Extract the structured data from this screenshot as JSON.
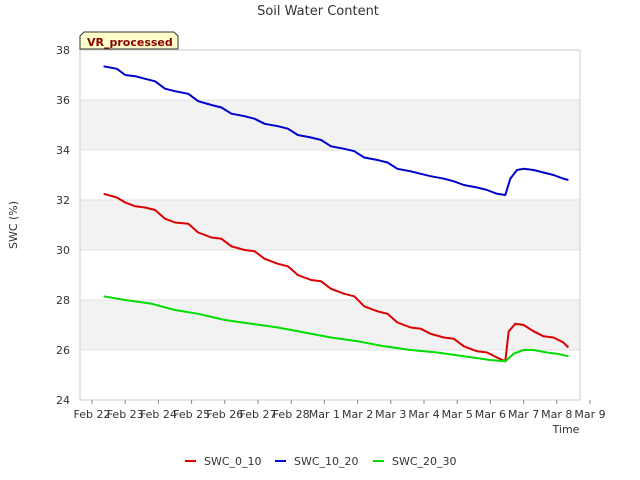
{
  "chart_data": {
    "type": "line",
    "title": "Soil Water Content",
    "xlabel": "Time",
    "ylabel": "SWC (%)",
    "badge": "VR_processed",
    "ylim": [
      24,
      38
    ],
    "yticks": [
      24,
      26,
      28,
      30,
      32,
      34,
      36,
      38
    ],
    "xlim": [
      0,
      15
    ],
    "x_ticks": [
      {
        "x": 0,
        "label": "Feb 22"
      },
      {
        "x": 1,
        "label": "Feb 23"
      },
      {
        "x": 2,
        "label": "Feb 24"
      },
      {
        "x": 3,
        "label": "Feb 25"
      },
      {
        "x": 4,
        "label": "Feb 26"
      },
      {
        "x": 5,
        "label": "Feb 27"
      },
      {
        "x": 6,
        "label": "Feb 28"
      },
      {
        "x": 7,
        "label": "Mar 1"
      },
      {
        "x": 8,
        "label": "Mar 2"
      },
      {
        "x": 9,
        "label": "Mar 3"
      },
      {
        "x": 10,
        "label": "Mar 4"
      },
      {
        "x": 11,
        "label": "Mar 5"
      },
      {
        "x": 12,
        "label": "Mar 6"
      },
      {
        "x": 13,
        "label": "Mar 7"
      },
      {
        "x": 14,
        "label": "Mar 8"
      },
      {
        "x": 15,
        "label": "Mar 9"
      }
    ],
    "grid": true,
    "bands": true,
    "legend_position": "bottom",
    "series": [
      {
        "name": "SWC_0_10",
        "color": "#dd0000",
        "x": [
          0.35,
          0.75,
          1.0,
          1.3,
          1.6,
          1.9,
          2.2,
          2.5,
          2.9,
          3.2,
          3.6,
          3.9,
          4.2,
          4.6,
          4.9,
          5.2,
          5.6,
          5.9,
          6.2,
          6.6,
          6.9,
          7.2,
          7.6,
          7.9,
          8.2,
          8.6,
          8.9,
          9.2,
          9.6,
          9.9,
          10.2,
          10.6,
          10.9,
          11.2,
          11.6,
          11.9,
          12.2,
          12.45,
          12.55,
          12.75,
          13.0,
          13.3,
          13.6,
          13.9,
          14.2,
          14.35
        ],
        "values": [
          32.25,
          32.1,
          31.9,
          31.75,
          31.7,
          31.6,
          31.25,
          31.1,
          31.05,
          30.7,
          30.5,
          30.45,
          30.15,
          30.0,
          29.95,
          29.65,
          29.45,
          29.35,
          29.0,
          28.8,
          28.75,
          28.45,
          28.25,
          28.15,
          27.75,
          27.55,
          27.45,
          27.1,
          26.9,
          26.85,
          26.65,
          26.5,
          26.45,
          26.15,
          25.95,
          25.9,
          25.7,
          25.55,
          26.75,
          27.05,
          27.0,
          26.75,
          26.55,
          26.5,
          26.3,
          26.1
        ]
      },
      {
        "name": "SWC_10_20",
        "color": "#0000cc",
        "x": [
          0.35,
          0.75,
          1.0,
          1.3,
          1.6,
          1.9,
          2.2,
          2.5,
          2.9,
          3.2,
          3.6,
          3.9,
          4.2,
          4.6,
          4.9,
          5.2,
          5.6,
          5.9,
          6.2,
          6.6,
          6.9,
          7.2,
          7.6,
          7.9,
          8.2,
          8.6,
          8.9,
          9.2,
          9.6,
          9.9,
          10.2,
          10.6,
          10.9,
          11.2,
          11.6,
          11.9,
          12.2,
          12.45,
          12.6,
          12.8,
          13.0,
          13.3,
          13.6,
          13.9,
          14.2,
          14.35
        ],
        "values": [
          37.35,
          37.25,
          37.0,
          36.95,
          36.85,
          36.75,
          36.45,
          36.35,
          36.25,
          35.95,
          35.8,
          35.7,
          35.45,
          35.35,
          35.25,
          35.05,
          34.95,
          34.85,
          34.6,
          34.5,
          34.4,
          34.15,
          34.05,
          33.95,
          33.7,
          33.6,
          33.5,
          33.25,
          33.15,
          33.05,
          32.95,
          32.85,
          32.75,
          32.6,
          32.5,
          32.4,
          32.25,
          32.2,
          32.85,
          33.2,
          33.25,
          33.2,
          33.1,
          33.0,
          32.85,
          32.8
        ]
      },
      {
        "name": "SWC_20_30",
        "color": "#00dd00",
        "x": [
          0.35,
          1.0,
          1.8,
          2.5,
          3.2,
          4.0,
          4.8,
          5.6,
          6.4,
          7.2,
          8.0,
          8.8,
          9.6,
          10.4,
          11.2,
          12.0,
          12.45,
          12.7,
          13.0,
          13.3,
          13.7,
          14.0,
          14.35
        ],
        "values": [
          28.15,
          28.0,
          27.85,
          27.6,
          27.45,
          27.2,
          27.05,
          26.9,
          26.7,
          26.5,
          26.35,
          26.15,
          26.0,
          25.9,
          25.75,
          25.6,
          25.55,
          25.85,
          26.0,
          26.0,
          25.9,
          25.85,
          25.75
        ]
      }
    ]
  }
}
